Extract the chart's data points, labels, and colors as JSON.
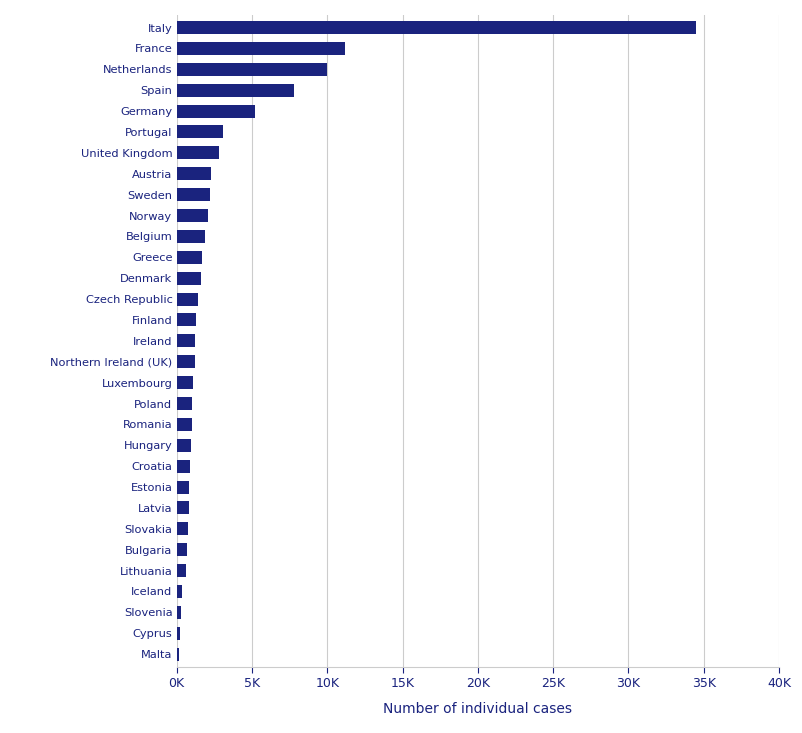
{
  "countries": [
    "Italy",
    "France",
    "Netherlands",
    "Spain",
    "Germany",
    "Portugal",
    "United Kingdom",
    "Austria",
    "Sweden",
    "Norway",
    "Belgium",
    "Greece",
    "Denmark",
    "Czech Republic",
    "Finland",
    "Ireland",
    "Northern Ireland (UK)",
    "Luxembourg",
    "Poland",
    "Romania",
    "Hungary",
    "Croatia",
    "Estonia",
    "Latvia",
    "Slovakia",
    "Bulgaria",
    "Lithuania",
    "Iceland",
    "Slovenia",
    "Cyprus",
    "Malta"
  ],
  "values": [
    34500,
    11200,
    10000,
    7800,
    5200,
    3100,
    2800,
    2300,
    2200,
    2100,
    1900,
    1700,
    1600,
    1400,
    1300,
    1250,
    1200,
    1100,
    1050,
    1000,
    950,
    900,
    850,
    800,
    750,
    700,
    650,
    350,
    300,
    200,
    150
  ],
  "bar_color": "#1a237e",
  "xlabel": "Number of individual cases",
  "xlabel_color": "#1a237e",
  "xlabel_fontsize": 10,
  "tick_label_color": "#1a237e",
  "background_color": "#ffffff",
  "grid_color": "#cccccc",
  "xlim": [
    0,
    40000
  ],
  "xtick_values": [
    0,
    5000,
    10000,
    15000,
    20000,
    25000,
    30000,
    35000,
    40000
  ],
  "xtick_labels": [
    "0K",
    "5K",
    "10K",
    "15K",
    "20K",
    "25K",
    "30K",
    "35K",
    "40K"
  ]
}
